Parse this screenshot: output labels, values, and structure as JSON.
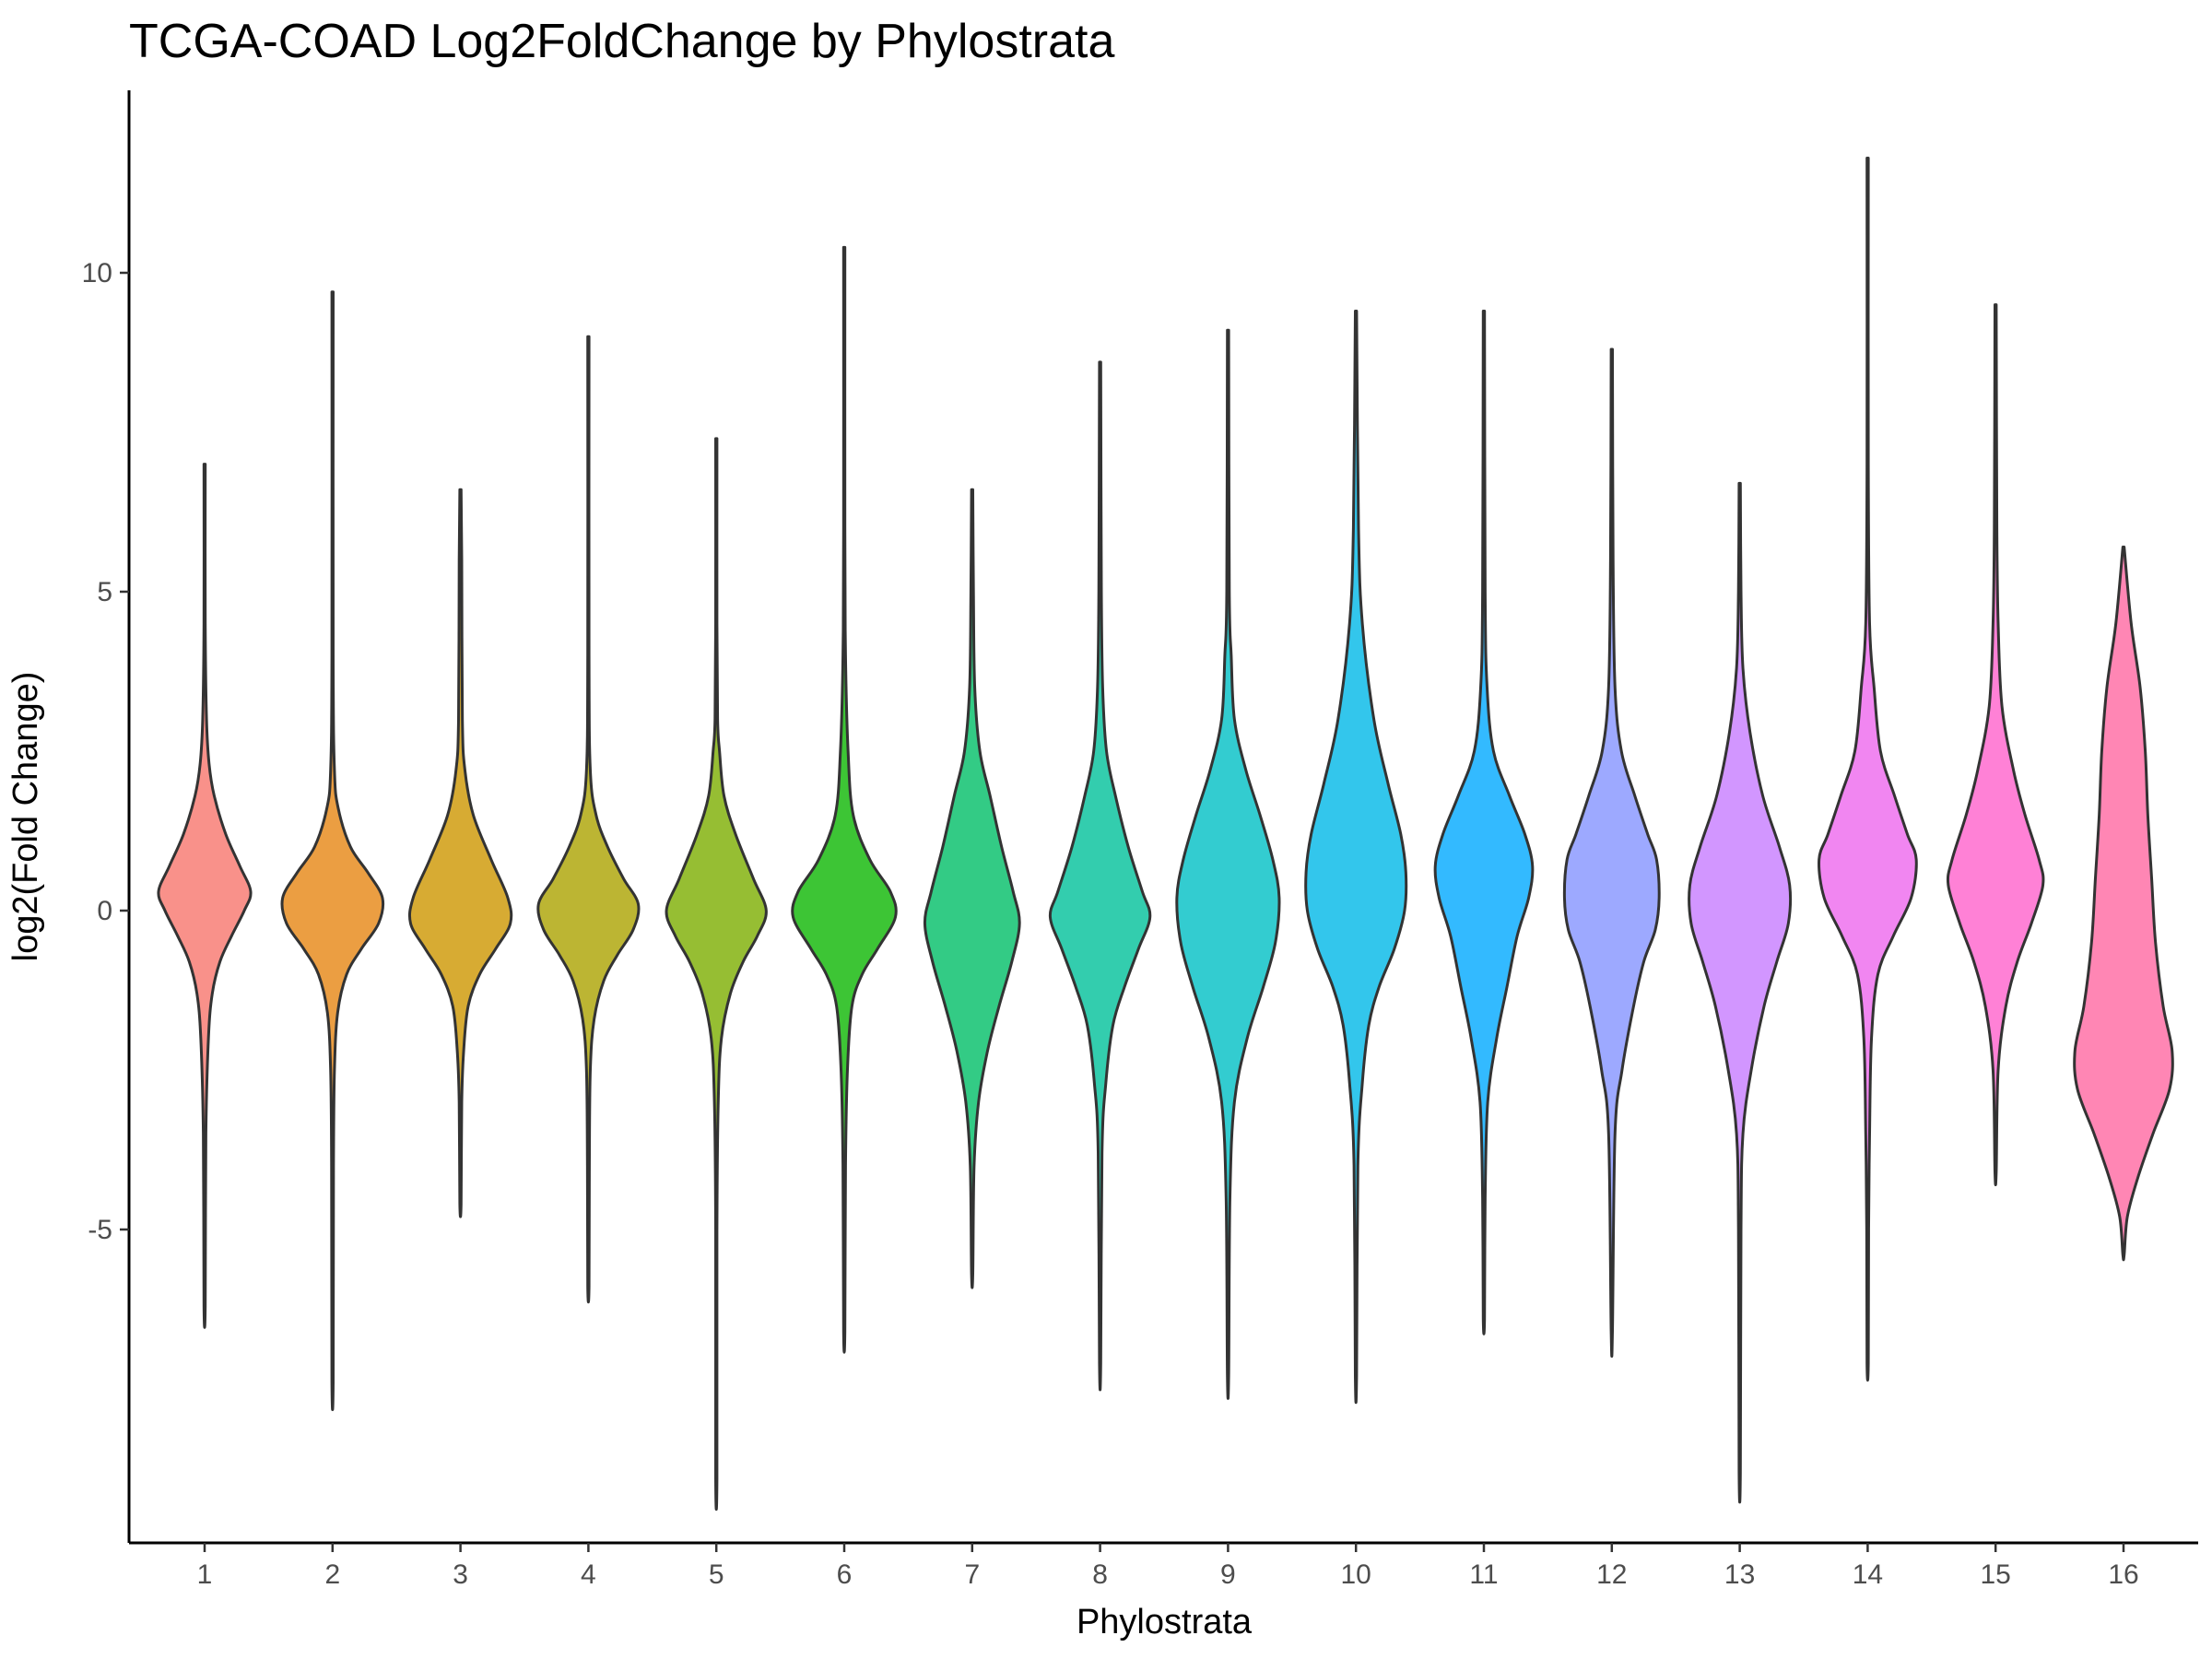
{
  "chart_data": {
    "type": "violin",
    "title": "TCGA-COAD Log2FoldChange by Phylostrata",
    "xlabel": "Phylostrata",
    "ylabel": "log2(Fold Change)",
    "categories": [
      "1",
      "2",
      "3",
      "4",
      "5",
      "6",
      "7",
      "8",
      "9",
      "10",
      "11",
      "12",
      "13",
      "14",
      "15",
      "16"
    ],
    "yticks": [
      -5,
      0,
      5,
      10
    ],
    "ytick_labels": [
      "-5",
      "0",
      "5",
      "10"
    ],
    "ylim": [
      -9.8,
      12.8
    ],
    "grid": false,
    "legend": "none",
    "fill_colors": [
      "#F8766D",
      "#E68613",
      "#CD9600",
      "#ABA300",
      "#7CAE00",
      "#0CB702",
      "#00BE67",
      "#00C19A",
      "#00BFC4",
      "#00B8E7",
      "#00A9FF",
      "#8494FF",
      "#C77CFF",
      "#ED68ED",
      "#FF61CC",
      "#FF68A1"
    ],
    "fill_opacity": 0.8,
    "stroke_color": "#333333",
    "violins": [
      {
        "category": "1",
        "min": -6.2,
        "max": 7.0,
        "profile": [
          [
            7.0,
            0.01
          ],
          [
            4.5,
            0.01
          ],
          [
            3.0,
            0.03
          ],
          [
            2.3,
            0.07
          ],
          [
            1.8,
            0.15
          ],
          [
            1.2,
            0.33
          ],
          [
            0.7,
            0.55
          ],
          [
            0.3,
            0.72
          ],
          [
            0.0,
            0.62
          ],
          [
            -0.4,
            0.42
          ],
          [
            -0.8,
            0.24
          ],
          [
            -1.3,
            0.12
          ],
          [
            -2.0,
            0.06
          ],
          [
            -3.5,
            0.02
          ],
          [
            -6.2,
            0.01
          ]
        ]
      },
      {
        "category": "2",
        "min": -7.4,
        "max": 9.7,
        "profile": [
          [
            9.7,
            0.01
          ],
          [
            4.0,
            0.01
          ],
          [
            2.2,
            0.03
          ],
          [
            1.6,
            0.09
          ],
          [
            1.0,
            0.28
          ],
          [
            0.6,
            0.55
          ],
          [
            0.2,
            0.78
          ],
          [
            -0.2,
            0.72
          ],
          [
            -0.6,
            0.45
          ],
          [
            -1.0,
            0.22
          ],
          [
            -1.6,
            0.08
          ],
          [
            -2.5,
            0.03
          ],
          [
            -4.0,
            0.015
          ],
          [
            -7.4,
            0.01
          ]
        ]
      },
      {
        "category": "3",
        "min": -4.6,
        "max": 6.6,
        "profile": [
          [
            6.6,
            0.01
          ],
          [
            5.5,
            0.02
          ],
          [
            3.0,
            0.03
          ],
          [
            2.2,
            0.07
          ],
          [
            1.5,
            0.2
          ],
          [
            0.8,
            0.48
          ],
          [
            0.2,
            0.74
          ],
          [
            -0.2,
            0.78
          ],
          [
            -0.6,
            0.55
          ],
          [
            -1.0,
            0.3
          ],
          [
            -1.5,
            0.12
          ],
          [
            -2.2,
            0.05
          ],
          [
            -3.0,
            0.02
          ],
          [
            -4.6,
            0.01
          ]
        ]
      },
      {
        "category": "4",
        "min": -5.9,
        "max": 9.0,
        "profile": [
          [
            9.0,
            0.01
          ],
          [
            4.0,
            0.01
          ],
          [
            2.2,
            0.03
          ],
          [
            1.5,
            0.12
          ],
          [
            1.0,
            0.3
          ],
          [
            0.5,
            0.55
          ],
          [
            0.1,
            0.78
          ],
          [
            -0.3,
            0.7
          ],
          [
            -0.7,
            0.45
          ],
          [
            -1.1,
            0.24
          ],
          [
            -1.7,
            0.09
          ],
          [
            -2.5,
            0.03
          ],
          [
            -4.0,
            0.015
          ],
          [
            -5.9,
            0.01
          ]
        ]
      },
      {
        "category": "5",
        "min": -8.9,
        "max": 7.4,
        "profile": [
          [
            7.4,
            0.01
          ],
          [
            4.5,
            0.01
          ],
          [
            3.0,
            0.02
          ],
          [
            2.5,
            0.05
          ],
          [
            1.8,
            0.12
          ],
          [
            1.2,
            0.3
          ],
          [
            0.5,
            0.58
          ],
          [
            0.0,
            0.78
          ],
          [
            -0.4,
            0.64
          ],
          [
            -0.8,
            0.42
          ],
          [
            -1.3,
            0.22
          ],
          [
            -2.0,
            0.08
          ],
          [
            -3.0,
            0.03
          ],
          [
            -5.0,
            0.01
          ],
          [
            -8.9,
            0.01
          ]
        ]
      },
      {
        "category": "6",
        "min": -6.6,
        "max": 10.4,
        "profile": [
          [
            10.4,
            0.01
          ],
          [
            6.0,
            0.01
          ],
          [
            4.0,
            0.02
          ],
          [
            2.5,
            0.06
          ],
          [
            1.5,
            0.14
          ],
          [
            0.8,
            0.4
          ],
          [
            0.3,
            0.72
          ],
          [
            -0.1,
            0.8
          ],
          [
            -0.6,
            0.52
          ],
          [
            -1.0,
            0.28
          ],
          [
            -1.5,
            0.12
          ],
          [
            -2.5,
            0.05
          ],
          [
            -4.0,
            0.02
          ],
          [
            -6.6,
            0.01
          ]
        ]
      },
      {
        "category": "7",
        "min": -5.7,
        "max": 6.6,
        "profile": [
          [
            6.6,
            0.01
          ],
          [
            5.0,
            0.02
          ],
          [
            3.5,
            0.04
          ],
          [
            2.5,
            0.12
          ],
          [
            1.8,
            0.28
          ],
          [
            1.0,
            0.46
          ],
          [
            0.3,
            0.64
          ],
          [
            -0.2,
            0.74
          ],
          [
            -0.8,
            0.62
          ],
          [
            -1.5,
            0.42
          ],
          [
            -2.2,
            0.24
          ],
          [
            -3.0,
            0.1
          ],
          [
            -4.0,
            0.03
          ],
          [
            -5.7,
            0.01
          ]
        ]
      },
      {
        "category": "8",
        "min": -7.1,
        "max": 8.6,
        "profile": [
          [
            8.6,
            0.01
          ],
          [
            5.0,
            0.02
          ],
          [
            3.5,
            0.04
          ],
          [
            2.5,
            0.1
          ],
          [
            1.8,
            0.24
          ],
          [
            1.0,
            0.44
          ],
          [
            0.3,
            0.66
          ],
          [
            -0.1,
            0.78
          ],
          [
            -0.6,
            0.6
          ],
          [
            -1.2,
            0.38
          ],
          [
            -1.8,
            0.2
          ],
          [
            -2.7,
            0.09
          ],
          [
            -3.8,
            0.03
          ],
          [
            -7.1,
            0.01
          ]
        ]
      },
      {
        "category": "9",
        "min": -7.3,
        "max": 9.1,
        "profile": [
          [
            9.1,
            0.01
          ],
          [
            5.0,
            0.02
          ],
          [
            4.0,
            0.05
          ],
          [
            3.0,
            0.1
          ],
          [
            2.2,
            0.28
          ],
          [
            1.5,
            0.5
          ],
          [
            0.8,
            0.7
          ],
          [
            0.2,
            0.8
          ],
          [
            -0.5,
            0.74
          ],
          [
            -1.2,
            0.55
          ],
          [
            -2.0,
            0.3
          ],
          [
            -3.0,
            0.1
          ],
          [
            -4.5,
            0.03
          ],
          [
            -7.3,
            0.01
          ]
        ]
      },
      {
        "category": "10",
        "min": -7.3,
        "max": 9.4,
        "profile": [
          [
            9.4,
            0.01
          ],
          [
            6.0,
            0.04
          ],
          [
            4.5,
            0.1
          ],
          [
            3.0,
            0.28
          ],
          [
            2.0,
            0.5
          ],
          [
            1.2,
            0.7
          ],
          [
            0.6,
            0.78
          ],
          [
            0.0,
            0.76
          ],
          [
            -0.6,
            0.6
          ],
          [
            -1.2,
            0.36
          ],
          [
            -1.8,
            0.2
          ],
          [
            -2.7,
            0.1
          ],
          [
            -4.0,
            0.03
          ],
          [
            -7.3,
            0.01
          ]
        ]
      },
      {
        "category": "11",
        "min": -6.4,
        "max": 9.4,
        "profile": [
          [
            9.4,
            0.01
          ],
          [
            5.0,
            0.02
          ],
          [
            3.5,
            0.05
          ],
          [
            2.5,
            0.15
          ],
          [
            1.8,
            0.4
          ],
          [
            1.2,
            0.64
          ],
          [
            0.7,
            0.76
          ],
          [
            0.2,
            0.7
          ],
          [
            -0.4,
            0.52
          ],
          [
            -1.2,
            0.36
          ],
          [
            -2.0,
            0.2
          ],
          [
            -3.0,
            0.06
          ],
          [
            -4.5,
            0.02
          ],
          [
            -6.4,
            0.01
          ]
        ]
      },
      {
        "category": "12",
        "min": -6.6,
        "max": 8.8,
        "profile": [
          [
            8.8,
            0.01
          ],
          [
            5.5,
            0.02
          ],
          [
            3.5,
            0.05
          ],
          [
            2.5,
            0.15
          ],
          [
            1.8,
            0.36
          ],
          [
            1.2,
            0.56
          ],
          [
            0.8,
            0.7
          ],
          [
            0.2,
            0.74
          ],
          [
            -0.3,
            0.68
          ],
          [
            -0.8,
            0.5
          ],
          [
            -1.5,
            0.34
          ],
          [
            -2.5,
            0.16
          ],
          [
            -3.5,
            0.05
          ],
          [
            -6.6,
            0.01
          ]
        ]
      },
      {
        "category": "13",
        "min": -8.8,
        "max": 6.7,
        "profile": [
          [
            6.7,
            0.01
          ],
          [
            5.0,
            0.02
          ],
          [
            3.8,
            0.05
          ],
          [
            2.8,
            0.16
          ],
          [
            1.8,
            0.36
          ],
          [
            1.0,
            0.62
          ],
          [
            0.4,
            0.78
          ],
          [
            -0.2,
            0.76
          ],
          [
            -0.8,
            0.58
          ],
          [
            -1.5,
            0.38
          ],
          [
            -2.5,
            0.18
          ],
          [
            -3.5,
            0.05
          ],
          [
            -5.0,
            0.02
          ],
          [
            -8.8,
            0.01
          ]
        ]
      },
      {
        "category": "14",
        "min": -7.1,
        "max": 11.8,
        "profile": [
          [
            11.8,
            0.01
          ],
          [
            7.0,
            0.01
          ],
          [
            4.5,
            0.03
          ],
          [
            3.5,
            0.1
          ],
          [
            2.5,
            0.2
          ],
          [
            1.8,
            0.42
          ],
          [
            1.2,
            0.62
          ],
          [
            0.8,
            0.76
          ],
          [
            0.2,
            0.68
          ],
          [
            -0.4,
            0.4
          ],
          [
            -1.0,
            0.16
          ],
          [
            -2.0,
            0.06
          ],
          [
            -3.5,
            0.03
          ],
          [
            -5.0,
            0.015
          ],
          [
            -7.1,
            0.01
          ]
        ]
      },
      {
        "category": "15",
        "min": -4.1,
        "max": 9.5,
        "profile": [
          [
            9.5,
            0.01
          ],
          [
            6.0,
            0.02
          ],
          [
            4.5,
            0.04
          ],
          [
            3.2,
            0.1
          ],
          [
            2.2,
            0.28
          ],
          [
            1.5,
            0.46
          ],
          [
            0.8,
            0.68
          ],
          [
            0.4,
            0.74
          ],
          [
            -0.2,
            0.56
          ],
          [
            -0.8,
            0.34
          ],
          [
            -1.5,
            0.16
          ],
          [
            -2.5,
            0.04
          ],
          [
            -4.1,
            0.01
          ]
        ]
      },
      {
        "category": "16",
        "min": -5.4,
        "max": 5.7,
        "profile": [
          [
            5.7,
            0.01
          ],
          [
            4.5,
            0.12
          ],
          [
            3.5,
            0.26
          ],
          [
            2.5,
            0.34
          ],
          [
            1.5,
            0.38
          ],
          [
            0.5,
            0.44
          ],
          [
            -0.5,
            0.5
          ],
          [
            -1.5,
            0.62
          ],
          [
            -2.2,
            0.76
          ],
          [
            -2.8,
            0.72
          ],
          [
            -3.5,
            0.46
          ],
          [
            -4.2,
            0.22
          ],
          [
            -4.8,
            0.06
          ],
          [
            -5.4,
            0.01
          ]
        ]
      }
    ]
  }
}
